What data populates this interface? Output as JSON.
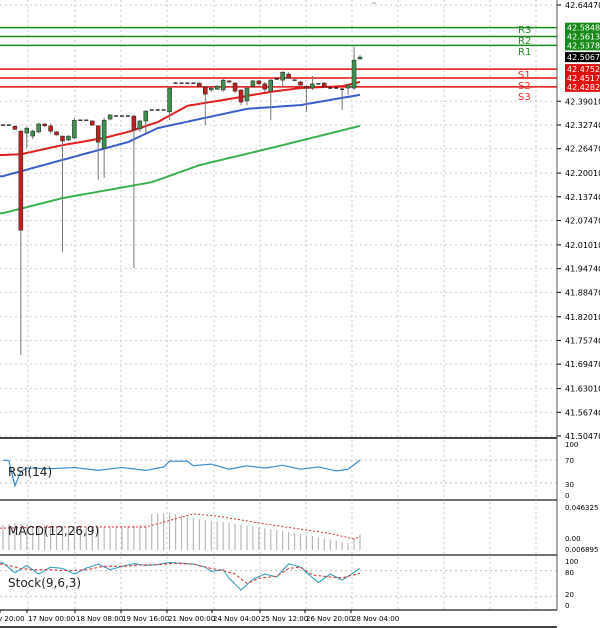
{
  "chart_data": [
    {
      "type": "candlestick",
      "panel": "main",
      "ylim": [
        41.5047,
        42.6447
      ],
      "y_ticks": [
        "42.64470",
        "42.39010",
        "42.32740",
        "42.26470",
        "42.20010",
        "42.13740",
        "42.07470",
        "42.01010",
        "41.94740",
        "41.88470",
        "41.82010",
        "41.75740",
        "41.69470",
        "41.63010",
        "41.56740",
        "41.50470"
      ],
      "grid": true,
      "current_price": {
        "value": 42.50678,
        "label": "42.50678"
      },
      "levels": [
        {
          "name": "R3",
          "value": 42.5848,
          "label": "42.58480",
          "color": "#1a8a1a"
        },
        {
          "name": "R2",
          "value": 42.5613,
          "label": "42.56130",
          "color": "#1a8a1a"
        },
        {
          "name": "R1",
          "value": 42.5378,
          "label": "42.53780",
          "color": "#1a8a1a"
        },
        {
          "name": "S1",
          "value": 42.4752,
          "label": "42.47520",
          "color": "#e01010"
        },
        {
          "name": "S2",
          "value": 42.4517,
          "label": "42.45170",
          "color": "#e01010"
        },
        {
          "name": "S3",
          "value": 42.4282,
          "label": "42.42820",
          "color": "#e01010"
        }
      ],
      "candles": [
        [
          42.327,
          42.327,
          42.327,
          42.327
        ],
        [
          42.327,
          42.327,
          42.327,
          42.327
        ],
        [
          42.324,
          42.327,
          42.314,
          42.316
        ],
        [
          42.311,
          42.315,
          41.719,
          42.049
        ],
        [
          42.306,
          42.322,
          42.266,
          42.319
        ],
        [
          42.298,
          42.315,
          42.29,
          42.311
        ],
        [
          42.309,
          42.333,
          42.305,
          42.33
        ],
        [
          42.33,
          42.332,
          42.323,
          42.325
        ],
        [
          42.325,
          42.33,
          42.305,
          42.311
        ],
        [
          42.309,
          42.311,
          42.299,
          42.301
        ],
        [
          42.298,
          42.3,
          41.991,
          42.285
        ],
        [
          42.288,
          42.3,
          42.285,
          42.298
        ],
        [
          42.293,
          42.346,
          42.29,
          42.34
        ],
        [
          42.34,
          42.34,
          42.34,
          42.34
        ],
        [
          42.34,
          42.34,
          42.34,
          42.34
        ],
        [
          42.338,
          42.34,
          42.325,
          42.327
        ],
        [
          42.325,
          42.327,
          42.182,
          42.282
        ],
        [
          42.266,
          42.346,
          42.187,
          42.34
        ],
        [
          42.343,
          42.356,
          42.34,
          42.354
        ],
        [
          42.351,
          42.351,
          42.351,
          42.351
        ],
        [
          42.351,
          42.351,
          42.351,
          42.351
        ],
        [
          42.351,
          42.351,
          42.351,
          42.351
        ],
        [
          42.351,
          42.354,
          41.949,
          42.314
        ],
        [
          42.317,
          42.34,
          42.309,
          42.338
        ],
        [
          42.338,
          42.367,
          42.306,
          42.364
        ],
        [
          42.367,
          42.367,
          42.367,
          42.367
        ],
        [
          42.367,
          42.367,
          42.367,
          42.367
        ],
        [
          42.367,
          42.367,
          42.367,
          42.367
        ],
        [
          42.362,
          42.43,
          42.34,
          42.425
        ],
        [
          42.438,
          42.441,
          42.438,
          42.438
        ],
        [
          42.438,
          42.438,
          42.438,
          42.438
        ],
        [
          42.438,
          42.438,
          42.438,
          42.438
        ],
        [
          42.438,
          42.438,
          42.438,
          42.438
        ],
        [
          42.438,
          42.44,
          42.428,
          42.43
        ],
        [
          42.428,
          42.43,
          42.327,
          42.409
        ],
        [
          42.42,
          42.428,
          42.415,
          42.425
        ],
        [
          42.422,
          42.433,
          42.42,
          42.43
        ],
        [
          42.42,
          42.449,
          42.415,
          42.446
        ],
        [
          42.444,
          42.446,
          42.438,
          42.441
        ],
        [
          42.438,
          42.441,
          42.412,
          42.417
        ],
        [
          42.42,
          42.422,
          42.38,
          42.388
        ],
        [
          42.391,
          42.43,
          42.38,
          42.425
        ],
        [
          42.43,
          42.446,
          42.425,
          42.444
        ],
        [
          42.444,
          42.446,
          42.433,
          42.436
        ],
        [
          42.436,
          42.441,
          42.415,
          42.422
        ],
        [
          42.417,
          42.449,
          42.34,
          42.446
        ],
        [
          42.449,
          42.449,
          42.449,
          42.449
        ],
        [
          42.446,
          42.47,
          42.43,
          42.467
        ],
        [
          42.462,
          42.467,
          42.449,
          42.452
        ],
        [
          42.446,
          42.446,
          42.446,
          42.446
        ],
        [
          42.441,
          42.444,
          42.428,
          42.433
        ],
        [
          42.43,
          42.433,
          42.362,
          42.425
        ],
        [
          42.425,
          42.457,
          42.42,
          42.436
        ],
        [
          42.436,
          42.436,
          42.436,
          42.436
        ],
        [
          42.438,
          42.441,
          42.425,
          42.428
        ],
        [
          42.425,
          42.425,
          42.425,
          42.425
        ],
        [
          42.425,
          42.425,
          42.425,
          42.425
        ],
        [
          42.422,
          42.425,
          42.367,
          42.42
        ],
        [
          42.425,
          42.436,
          42.407,
          42.433
        ],
        [
          42.425,
          42.534,
          42.42,
          42.499
        ],
        [
          42.502,
          42.512,
          42.5,
          42.507
        ]
      ],
      "moving_averages": [
        {
          "color": "#e02020",
          "points": [
            [
              0,
              42.248
            ],
            [
              3,
              42.25
            ],
            [
              10,
              42.274
            ],
            [
              17,
              42.293
            ],
            [
              21,
              42.309
            ],
            [
              26,
              42.335
            ],
            [
              31,
              42.378
            ],
            [
              38,
              42.396
            ],
            [
              45,
              42.415
            ],
            [
              50,
              42.425
            ],
            [
              57,
              42.43
            ],
            [
              60,
              42.441
            ]
          ]
        },
        {
          "color": "#3a5fc8",
          "points": [
            [
              0,
              42.192
            ],
            [
              10,
              42.235
            ],
            [
              21,
              42.282
            ],
            [
              26,
              42.319
            ],
            [
              33,
              42.343
            ],
            [
              41,
              42.37
            ],
            [
              50,
              42.38
            ],
            [
              57,
              42.399
            ],
            [
              60,
              42.407
            ]
          ]
        },
        {
          "color": "#3cb050",
          "points": [
            [
              0,
              42.094
            ],
            [
              10,
              42.134
            ],
            [
              25,
              42.176
            ],
            [
              33,
              42.221
            ],
            [
              47,
              42.274
            ],
            [
              60,
              42.325
            ]
          ]
        }
      ],
      "x_ticks": [
        "v 20:00",
        "17 Nov 00:00",
        "18 Nov 08:00",
        "19 Nov 16:00",
        "21 Nov 00:00",
        "24 Nov 04:00",
        "25 Nov 12:00",
        "26 Nov 20:00",
        "28 Nov 04:00"
      ]
    },
    {
      "type": "line",
      "panel": "rsi",
      "title": "RSI(14)",
      "ylim": [
        0,
        100
      ],
      "y_ticks": [
        "100",
        "70",
        "30",
        "0"
      ],
      "series": [
        {
          "color": "#3a8fd0",
          "points": [
            [
              0,
              70
            ],
            [
              1,
              69
            ],
            [
              2,
              25
            ],
            [
              3,
              50
            ],
            [
              4,
              56
            ],
            [
              8,
              55
            ],
            [
              12,
              57
            ],
            [
              16,
              52
            ],
            [
              20,
              57
            ],
            [
              24,
              52
            ],
            [
              27,
              58
            ],
            [
              28,
              68
            ],
            [
              31,
              68
            ],
            [
              32,
              60
            ],
            [
              35,
              63
            ],
            [
              38,
              54
            ],
            [
              41,
              60
            ],
            [
              44,
              56
            ],
            [
              47,
              61
            ],
            [
              50,
              54
            ],
            [
              53,
              58
            ],
            [
              56,
              51
            ],
            [
              58,
              54
            ],
            [
              59,
              62
            ],
            [
              60,
              70
            ]
          ]
        }
      ]
    },
    {
      "type": "bar",
      "panel": "macd",
      "title": "MACD(12,26,9)",
      "ylim": [
        0.006895,
        0.046325
      ],
      "y_ticks": [
        "0.046325",
        "0.00",
        "0.006895"
      ],
      "histogram": [
        [
          0,
          0.03
        ],
        [
          3,
          0.032
        ],
        [
          5,
          0.028
        ],
        [
          10,
          0.029
        ],
        [
          16,
          0.028
        ],
        [
          20,
          0.029
        ],
        [
          24,
          0.03
        ],
        [
          25,
          0.04
        ],
        [
          28,
          0.041
        ],
        [
          32,
          0.036
        ],
        [
          40,
          0.03
        ],
        [
          50,
          0.022
        ],
        [
          58,
          0.013
        ],
        [
          60,
          0.021
        ]
      ],
      "signal": [
        [
          0,
          0.027
        ],
        [
          10,
          0.028
        ],
        [
          24,
          0.028
        ],
        [
          28,
          0.034
        ],
        [
          32,
          0.04
        ],
        [
          36,
          0.038
        ],
        [
          45,
          0.03
        ],
        [
          55,
          0.022
        ],
        [
          59,
          0.017
        ],
        [
          60,
          0.019
        ]
      ]
    },
    {
      "type": "line",
      "panel": "stochastic",
      "title": "Stock(9,6,3)",
      "ylim": [
        0,
        100
      ],
      "y_ticks": [
        "100",
        "80",
        "20",
        "0"
      ],
      "series": [
        {
          "color": "#3aa0c0",
          "points": [
            [
              0,
              98
            ],
            [
              2,
              75
            ],
            [
              4,
              92
            ],
            [
              6,
              72
            ],
            [
              8,
              88
            ],
            [
              10,
              85
            ],
            [
              12,
              72
            ],
            [
              14,
              86
            ],
            [
              16,
              95
            ],
            [
              18,
              82
            ],
            [
              20,
              90
            ],
            [
              22,
              96
            ],
            [
              24,
              92
            ],
            [
              26,
              94
            ],
            [
              28,
              99
            ],
            [
              30,
              97
            ],
            [
              32,
              95
            ],
            [
              34,
              88
            ],
            [
              35,
              78
            ],
            [
              37,
              82
            ],
            [
              38,
              62
            ],
            [
              40,
              35
            ],
            [
              42,
              60
            ],
            [
              44,
              72
            ],
            [
              46,
              65
            ],
            [
              48,
              96
            ],
            [
              50,
              88
            ],
            [
              53,
              52
            ],
            [
              55,
              72
            ],
            [
              57,
              58
            ],
            [
              60,
              85
            ]
          ]
        },
        {
          "color": "#d04040",
          "dashed": true,
          "points": [
            [
              0,
              95
            ],
            [
              3,
              85
            ],
            [
              5,
              82
            ],
            [
              8,
              82
            ],
            [
              11,
              80
            ],
            [
              14,
              82
            ],
            [
              17,
              90
            ],
            [
              20,
              90
            ],
            [
              23,
              93
            ],
            [
              26,
              94
            ],
            [
              29,
              97
            ],
            [
              32,
              95
            ],
            [
              35,
              85
            ],
            [
              37,
              80
            ],
            [
              39,
              72
            ],
            [
              41,
              50
            ],
            [
              43,
              62
            ],
            [
              46,
              67
            ],
            [
              48,
              85
            ],
            [
              50,
              88
            ],
            [
              52,
              70
            ],
            [
              55,
              65
            ],
            [
              57,
              63
            ],
            [
              60,
              74
            ]
          ]
        }
      ]
    }
  ]
}
